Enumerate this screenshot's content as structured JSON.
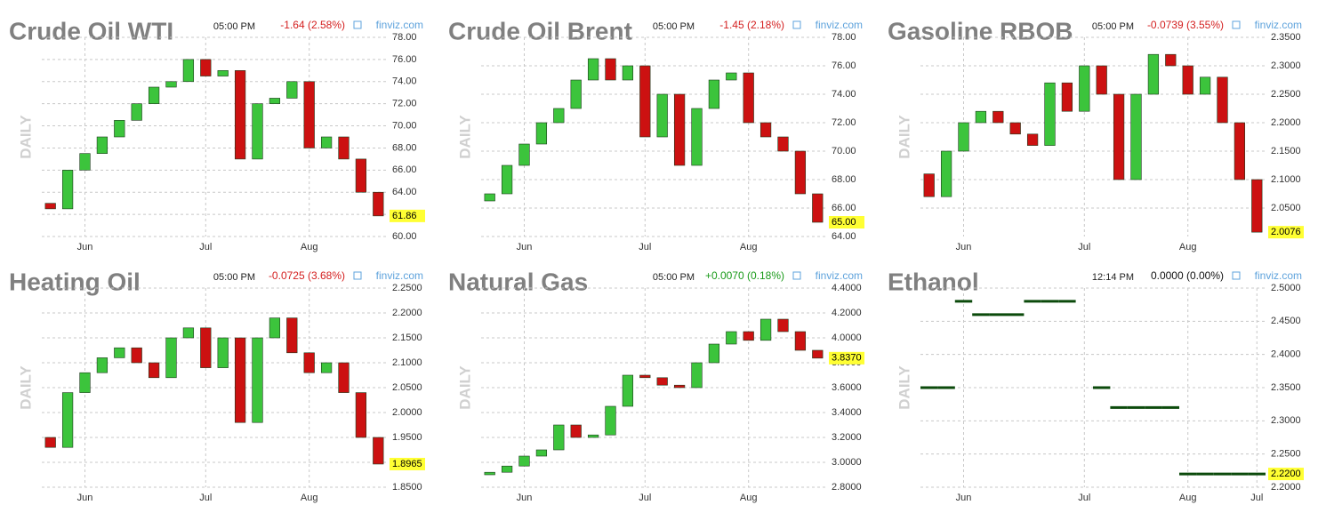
{
  "chart_data": [
    {
      "type": "candlestick",
      "title": "Crude Oil WTI",
      "time": "05:00 PM",
      "change": "-1.64 (2.58%)",
      "change_color": "#d42020",
      "source": "finviz.com",
      "side_label": "DAILY",
      "up_color": "#3cc43c",
      "down_color": "#cc1111",
      "categories": [
        null,
        null,
        "Jun",
        null,
        null,
        null,
        null,
        null,
        null,
        "Jul",
        null,
        null,
        null,
        null,
        null,
        "Aug",
        null,
        null,
        null,
        null
      ],
      "open": [
        63,
        62.5,
        66,
        67.5,
        69,
        70.5,
        72,
        73.5,
        74,
        76,
        74.5,
        75,
        67,
        72,
        72.5,
        74,
        68,
        69,
        67,
        64
      ],
      "values": [
        62.5,
        66,
        67.5,
        69,
        70.5,
        72,
        73.5,
        74,
        76,
        74.5,
        75,
        67,
        72,
        72.5,
        74,
        68,
        69,
        67,
        64,
        61.86
      ],
      "value_labels": [
        null,
        null,
        null,
        null,
        null,
        null,
        null,
        null,
        null,
        null,
        null,
        null,
        null,
        null,
        null,
        null,
        null,
        null,
        null,
        "61.86"
      ],
      "ylim": [
        60,
        78
      ],
      "yticks": [
        {
          "value": 60,
          "label": "60.00"
        },
        {
          "value": 62,
          "label": "62.00"
        },
        {
          "value": 64,
          "label": "64.00"
        },
        {
          "value": 66,
          "label": "66.00"
        },
        {
          "value": 68,
          "label": "68.00"
        },
        {
          "value": 70,
          "label": "70.00"
        },
        {
          "value": 72,
          "label": "72.00"
        },
        {
          "value": 74,
          "label": "74.00"
        },
        {
          "value": 76,
          "label": "76.00"
        },
        {
          "value": 78,
          "label": "78.00"
        }
      ],
      "grid": true
    },
    {
      "type": "candlestick",
      "title": "Crude Oil Brent",
      "time": "05:00 PM",
      "change": "-1.45 (2.18%)",
      "change_color": "#d42020",
      "source": "finviz.com",
      "side_label": "DAILY",
      "up_color": "#3cc43c",
      "down_color": "#cc1111",
      "categories": [
        null,
        null,
        "Jun",
        null,
        null,
        null,
        null,
        null,
        null,
        "Jul",
        null,
        null,
        null,
        null,
        null,
        "Aug",
        null,
        null,
        null,
        null
      ],
      "open": [
        66.5,
        67,
        69,
        70.5,
        72,
        73,
        75,
        76.5,
        75,
        76,
        71,
        74,
        69,
        73,
        75,
        75.5,
        72,
        71,
        70,
        67
      ],
      "values": [
        67,
        69,
        70.5,
        72,
        73,
        75,
        76.5,
        75,
        76,
        71,
        74,
        69,
        73,
        75,
        75.5,
        72,
        71,
        70,
        67,
        65
      ],
      "value_labels": [
        null,
        null,
        null,
        null,
        null,
        null,
        null,
        null,
        null,
        null,
        null,
        null,
        null,
        null,
        null,
        null,
        null,
        null,
        null,
        "65.00"
      ],
      "ylim": [
        64,
        78
      ],
      "yticks": [
        {
          "value": 64,
          "label": "64.00"
        },
        {
          "value": 66,
          "label": "66.00"
        },
        {
          "value": 68,
          "label": "68.00"
        },
        {
          "value": 70,
          "label": "70.00"
        },
        {
          "value": 72,
          "label": "72.00"
        },
        {
          "value": 74,
          "label": "74.00"
        },
        {
          "value": 76,
          "label": "76.00"
        },
        {
          "value": 78,
          "label": "78.00"
        }
      ],
      "grid": true
    },
    {
      "type": "candlestick",
      "title": "Gasoline RBOB",
      "time": "05:00 PM",
      "change": "-0.0739 (3.55%)",
      "change_color": "#d42020",
      "source": "finviz.com",
      "side_label": "DAILY",
      "up_color": "#3cc43c",
      "down_color": "#cc1111",
      "categories": [
        null,
        null,
        "Jun",
        null,
        null,
        null,
        null,
        null,
        null,
        "Jul",
        null,
        null,
        null,
        null,
        null,
        "Aug",
        null,
        null,
        null,
        null
      ],
      "open": [
        2.11,
        2.07,
        2.15,
        2.2,
        2.22,
        2.2,
        2.18,
        2.16,
        2.27,
        2.22,
        2.3,
        2.25,
        2.1,
        2.25,
        2.32,
        2.3,
        2.25,
        2.28,
        2.2,
        2.1
      ],
      "values": [
        2.07,
        2.15,
        2.2,
        2.22,
        2.2,
        2.18,
        2.16,
        2.27,
        2.22,
        2.3,
        2.25,
        2.1,
        2.25,
        2.32,
        2.3,
        2.25,
        2.28,
        2.2,
        2.1,
        2.0076
      ],
      "value_labels": [
        null,
        null,
        null,
        null,
        null,
        null,
        null,
        null,
        null,
        null,
        null,
        null,
        null,
        null,
        null,
        null,
        null,
        null,
        null,
        "2.0076"
      ],
      "ylim": [
        2.0,
        2.35
      ],
      "yticks": [
        {
          "value": 2.05,
          "label": "2.0500"
        },
        {
          "value": 2.1,
          "label": "2.1000"
        },
        {
          "value": 2.15,
          "label": "2.1500"
        },
        {
          "value": 2.2,
          "label": "2.2000"
        },
        {
          "value": 2.25,
          "label": "2.2500"
        },
        {
          "value": 2.3,
          "label": "2.3000"
        },
        {
          "value": 2.35,
          "label": "2.3500"
        }
      ],
      "grid": true
    },
    {
      "type": "candlestick",
      "title": "Heating Oil",
      "time": "05:00 PM",
      "change": "-0.0725 (3.68%)",
      "change_color": "#d42020",
      "source": "finviz.com",
      "side_label": "DAILY",
      "up_color": "#3cc43c",
      "down_color": "#cc1111",
      "categories": [
        null,
        null,
        "Jun",
        null,
        null,
        null,
        null,
        null,
        null,
        "Jul",
        null,
        null,
        null,
        null,
        null,
        "Aug",
        null,
        null,
        null,
        null
      ],
      "open": [
        1.95,
        1.93,
        2.04,
        2.08,
        2.11,
        2.13,
        2.1,
        2.07,
        2.15,
        2.17,
        2.09,
        2.15,
        1.98,
        2.15,
        2.19,
        2.12,
        2.08,
        2.1,
        2.04,
        1.95
      ],
      "values": [
        1.93,
        2.04,
        2.08,
        2.11,
        2.13,
        2.1,
        2.07,
        2.15,
        2.17,
        2.09,
        2.15,
        1.98,
        2.15,
        2.19,
        2.12,
        2.08,
        2.1,
        2.04,
        1.95,
        1.8965
      ],
      "value_labels": [
        null,
        null,
        null,
        null,
        null,
        null,
        null,
        null,
        null,
        null,
        null,
        null,
        null,
        null,
        null,
        null,
        null,
        null,
        null,
        "1.8965"
      ],
      "ylim": [
        1.85,
        2.25
      ],
      "yticks": [
        {
          "value": 1.85,
          "label": "1.8500"
        },
        {
          "value": 1.9,
          "label": "1.9000"
        },
        {
          "value": 1.95,
          "label": "1.9500"
        },
        {
          "value": 2.0,
          "label": "2.0000"
        },
        {
          "value": 2.05,
          "label": "2.0500"
        },
        {
          "value": 2.1,
          "label": "2.1000"
        },
        {
          "value": 2.15,
          "label": "2.1500"
        },
        {
          "value": 2.2,
          "label": "2.2000"
        },
        {
          "value": 2.25,
          "label": "2.2500"
        }
      ],
      "grid": true
    },
    {
      "type": "candlestick",
      "title": "Natural Gas",
      "time": "05:00 PM",
      "change": "+0.0070 (0.18%)",
      "change_color": "#1a9a1a",
      "source": "finviz.com",
      "side_label": "DAILY",
      "up_color": "#3cc43c",
      "down_color": "#cc1111",
      "categories": [
        null,
        null,
        "Jun",
        null,
        null,
        null,
        null,
        null,
        null,
        "Jul",
        null,
        null,
        null,
        null,
        null,
        "Aug",
        null,
        null,
        null,
        null
      ],
      "open": [
        2.9,
        2.92,
        2.97,
        3.05,
        3.1,
        3.3,
        3.2,
        3.22,
        3.45,
        3.7,
        3.68,
        3.62,
        3.6,
        3.8,
        3.95,
        4.05,
        3.98,
        4.15,
        4.05,
        3.9
      ],
      "values": [
        2.92,
        2.97,
        3.05,
        3.1,
        3.3,
        3.2,
        3.22,
        3.45,
        3.7,
        3.68,
        3.62,
        3.6,
        3.8,
        3.95,
        4.05,
        3.98,
        4.15,
        4.05,
        3.9,
        3.837
      ],
      "value_labels": [
        null,
        null,
        null,
        null,
        null,
        null,
        null,
        null,
        null,
        null,
        null,
        null,
        null,
        null,
        null,
        null,
        null,
        null,
        null,
        "3.8370"
      ],
      "ylim": [
        2.8,
        4.4
      ],
      "yticks": [
        {
          "value": 2.8,
          "label": "2.8000"
        },
        {
          "value": 3.0,
          "label": "3.0000"
        },
        {
          "value": 3.2,
          "label": "3.2000"
        },
        {
          "value": 3.4,
          "label": "3.4000"
        },
        {
          "value": 3.6,
          "label": "3.6000"
        },
        {
          "value": 3.8,
          "label": "3.8000"
        },
        {
          "value": 4.0,
          "label": "4.0000"
        },
        {
          "value": 4.2,
          "label": "4.2000"
        },
        {
          "value": 4.4,
          "label": "4.4000"
        }
      ],
      "grid": true
    },
    {
      "type": "step",
      "title": "Ethanol",
      "time": "12:14 PM",
      "change": "0.0000 (0.00%)",
      "change_color": "#111111",
      "source": "finviz.com",
      "side_label": "DAILY",
      "color": "#0b4a0b",
      "categories": [
        null,
        null,
        "Jun",
        null,
        null,
        null,
        null,
        null,
        null,
        "Jul",
        null,
        null,
        null,
        null,
        null,
        "Aug",
        null,
        null,
        null,
        "Jul"
      ],
      "values": [
        2.35,
        2.35,
        2.48,
        2.46,
        2.46,
        2.46,
        2.48,
        2.48,
        2.48,
        null,
        2.35,
        2.32,
        2.32,
        2.32,
        2.32,
        2.22,
        2.22,
        2.22,
        2.22,
        2.22
      ],
      "value_labels": [
        null,
        null,
        null,
        null,
        null,
        null,
        null,
        null,
        null,
        null,
        null,
        null,
        null,
        null,
        null,
        null,
        null,
        null,
        null,
        "2.2200"
      ],
      "ylim": [
        2.2,
        2.5
      ],
      "yticks": [
        {
          "value": 2.2,
          "label": "2.2000"
        },
        {
          "value": 2.25,
          "label": "2.2500"
        },
        {
          "value": 2.3,
          "label": "2.3000"
        },
        {
          "value": 2.35,
          "label": "2.3500"
        },
        {
          "value": 2.4,
          "label": "2.4000"
        },
        {
          "value": 2.45,
          "label": "2.4500"
        },
        {
          "value": 2.5,
          "label": "2.5000"
        }
      ],
      "grid": true
    }
  ]
}
